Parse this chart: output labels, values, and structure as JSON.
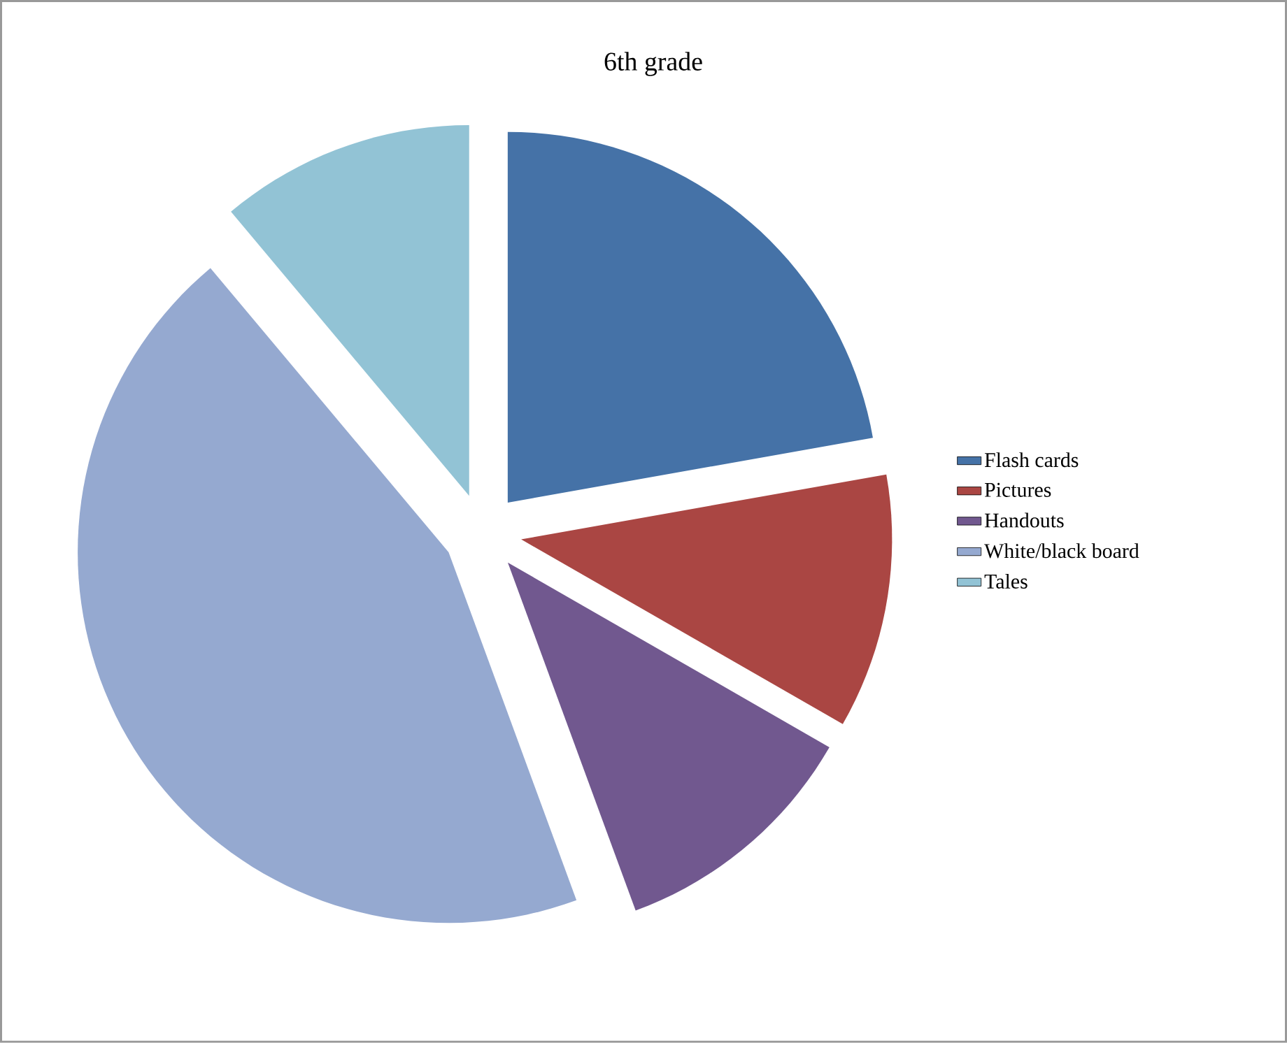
{
  "chart_data": {
    "type": "pie",
    "title": "6th grade",
    "categories": [
      "Flash cards",
      "Pictures",
      "Handouts",
      "White/black board",
      "Tales"
    ],
    "values": [
      22.2,
      11.1,
      11.1,
      44.5,
      11.1
    ],
    "colors": [
      "#4572a7",
      "#aa4643",
      "#71588f",
      "#95a9d0",
      "#92c3d5"
    ],
    "legend": "right"
  }
}
